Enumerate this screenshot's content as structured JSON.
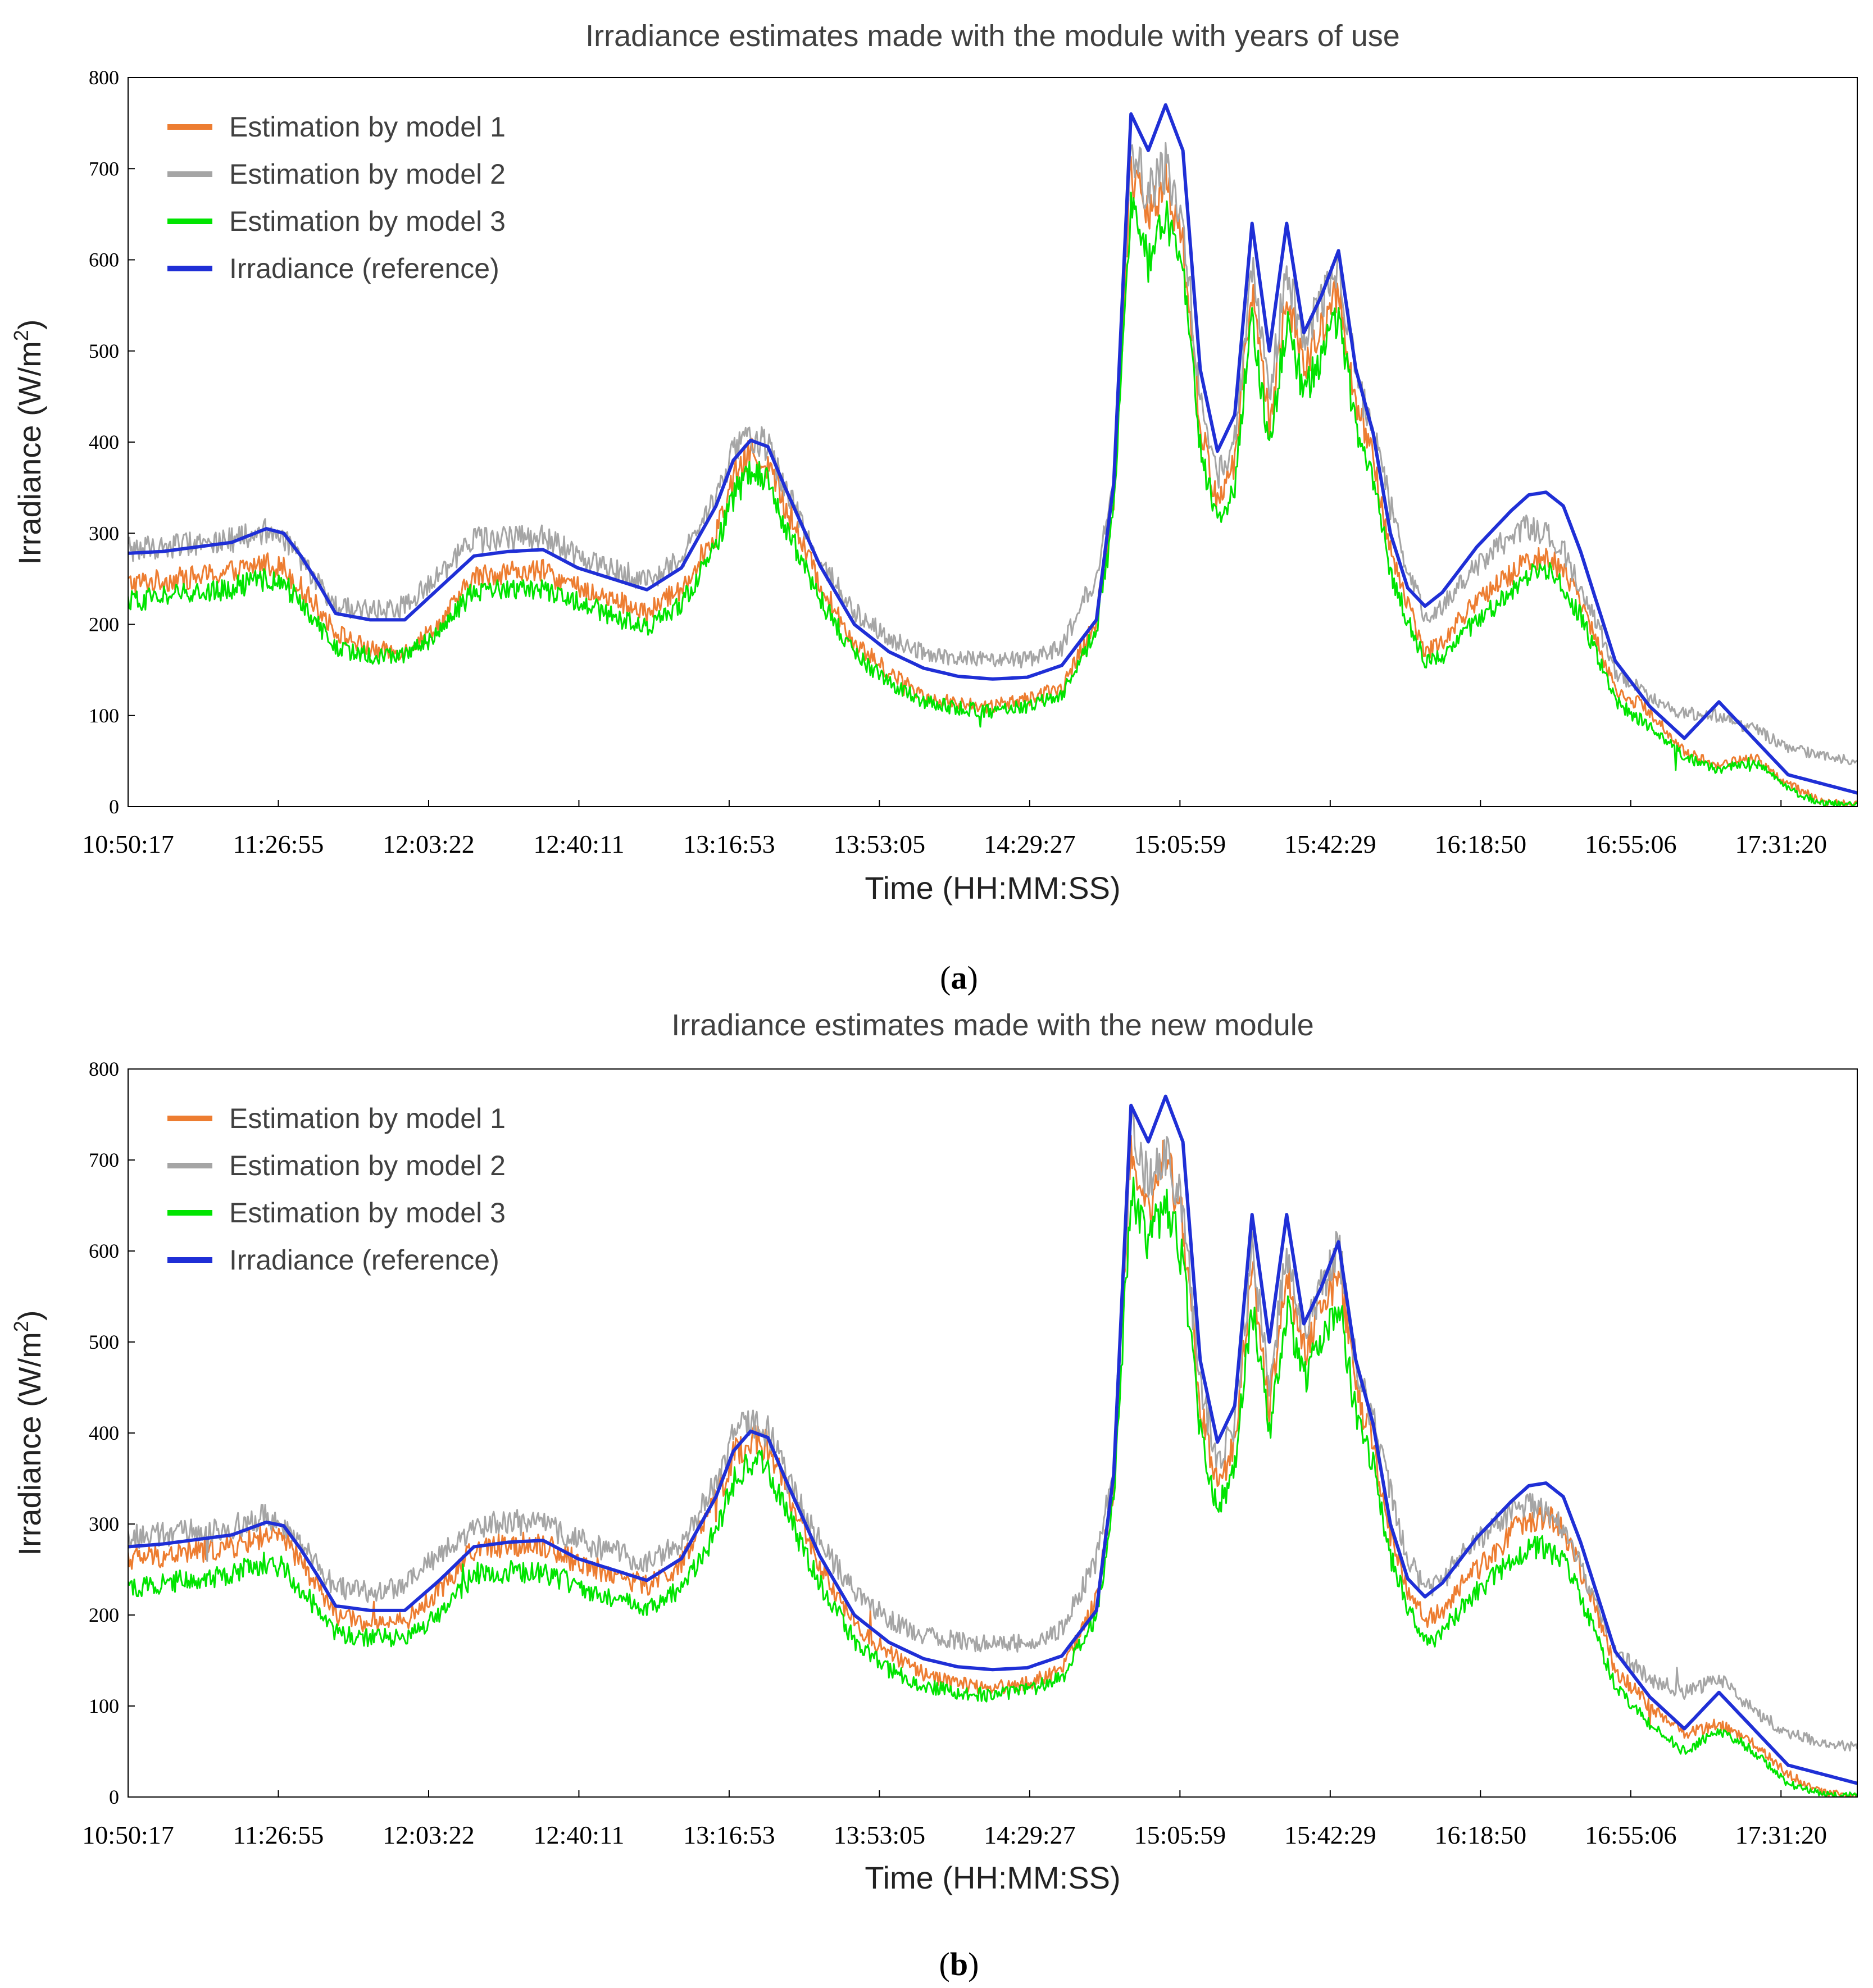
{
  "chart_data": [
    {
      "type": "line",
      "panel_label": "a",
      "title": "Irradiance estimates made with the module with years of use",
      "xlabel": "Time (HH:MM:SS)",
      "ylabel": "Irradiance (W/m",
      "ylabel_sup": "2",
      "ylabel_close": ")",
      "ylim": [
        0,
        800
      ],
      "yticks": [
        "0",
        "100",
        "200",
        "300",
        "400",
        "500",
        "600",
        "700",
        "800"
      ],
      "xticks": [
        "10:50:17",
        "11:26:55",
        "12:03:22",
        "12:40:11",
        "13:16:53",
        "13:53:05",
        "14:29:27",
        "15:05:59",
        "15:42:29",
        "16:18:50",
        "16:55:06",
        "17:31:20"
      ],
      "xlim": [
        0,
        100
      ],
      "x": [
        0,
        2,
        4,
        6,
        8,
        9,
        10,
        11,
        12,
        14,
        16,
        18,
        20,
        22,
        24,
        26,
        28,
        30,
        32,
        34,
        35,
        36,
        37,
        38,
        40,
        42,
        44,
        46,
        48,
        50,
        52,
        54,
        56,
        57,
        58,
        59,
        60,
        61,
        62,
        63,
        64,
        65,
        66,
        67,
        68,
        69,
        70,
        71,
        72,
        73,
        74,
        75,
        76,
        77,
        78,
        79,
        80,
        81,
        82,
        83,
        84,
        85,
        86,
        88,
        90,
        92,
        94,
        96,
        98,
        100
      ],
      "series": [
        {
          "name": "Estimation by model 1",
          "color": "#ED7D31",
          "values": [
            245,
            248,
            252,
            258,
            268,
            262,
            240,
            218,
            192,
            172,
            170,
            200,
            252,
            258,
            258,
            240,
            228,
            212,
            240,
            300,
            360,
            390,
            375,
            330,
            245,
            180,
            148,
            122,
            112,
            110,
            118,
            130,
            205,
            340,
            700,
            640,
            695,
            620,
            420,
            330,
            380,
            570,
            420,
            560,
            480,
            520,
            570,
            440,
            380,
            280,
            225,
            170,
            180,
            205,
            225,
            240,
            255,
            270,
            275,
            260,
            225,
            180,
            130,
            105,
            60,
            45,
            55,
            25,
            5,
            2
          ]
        },
        {
          "name": "Estimation by model 2",
          "color": "#A5A5A5",
          "values": [
            282,
            285,
            290,
            292,
            302,
            295,
            270,
            245,
            220,
            215,
            220,
            255,
            292,
            295,
            295,
            275,
            262,
            248,
            270,
            340,
            390,
            408,
            395,
            350,
            270,
            215,
            185,
            168,
            162,
            160,
            162,
            175,
            255,
            360,
            730,
            670,
            700,
            640,
            450,
            360,
            405,
            595,
            450,
            590,
            510,
            555,
            600,
            470,
            410,
            330,
            260,
            210,
            220,
            245,
            262,
            280,
            298,
            308,
            300,
            282,
            240,
            200,
            148,
            120,
            102,
            100,
            85,
            65,
            55,
            50
          ]
        },
        {
          "name": "Estimation by model 3",
          "color": "#00E400",
          "values": [
            225,
            230,
            235,
            240,
            250,
            245,
            222,
            200,
            175,
            165,
            165,
            190,
            238,
            240,
            240,
            225,
            210,
            195,
            222,
            285,
            340,
            370,
            355,
            310,
            228,
            168,
            135,
            115,
            108,
            105,
            110,
            122,
            195,
            320,
            660,
            600,
            650,
            580,
            395,
            310,
            355,
            540,
            395,
            530,
            455,
            495,
            540,
            415,
            360,
            260,
            205,
            158,
            165,
            185,
            205,
            220,
            238,
            252,
            258,
            242,
            208,
            165,
            115,
            88,
            55,
            40,
            50,
            20,
            3,
            1
          ]
        },
        {
          "name": "Irradiance (reference)",
          "color": "#1F2FD6",
          "values": [
            278,
            280,
            285,
            290,
            305,
            300,
            275,
            245,
            212,
            205,
            205,
            240,
            275,
            280,
            282,
            262,
            250,
            238,
            262,
            330,
            380,
            402,
            395,
            350,
            265,
            200,
            170,
            152,
            143,
            140,
            142,
            155,
            205,
            355,
            760,
            720,
            770,
            720,
            480,
            390,
            430,
            640,
            500,
            640,
            520,
            560,
            610,
            480,
            410,
            300,
            240,
            220,
            235,
            260,
            285,
            305,
            325,
            342,
            345,
            330,
            280,
            220,
            160,
            110,
            75,
            115,
            75,
            35,
            25,
            15
          ]
        }
      ]
    },
    {
      "type": "line",
      "panel_label": "b",
      "title": "Irradiance estimates made with the new module",
      "xlabel": "Time (HH:MM:SS)",
      "ylabel": "Irradiance (W/m",
      "ylabel_sup": "2",
      "ylabel_close": ")",
      "ylim": [
        0,
        800
      ],
      "yticks": [
        "0",
        "100",
        "200",
        "300",
        "400",
        "500",
        "600",
        "700",
        "800"
      ],
      "xticks": [
        "10:50:17",
        "11:26:55",
        "12:03:22",
        "12:40:11",
        "13:16:53",
        "13:53:05",
        "14:29:27",
        "15:05:59",
        "15:42:29",
        "16:18:50",
        "16:55:06",
        "17:31:20"
      ],
      "xlim": [
        0,
        100
      ],
      "x": [
        0,
        2,
        4,
        6,
        8,
        9,
        10,
        11,
        12,
        14,
        16,
        18,
        20,
        22,
        24,
        26,
        28,
        30,
        32,
        34,
        35,
        36,
        37,
        38,
        40,
        42,
        44,
        46,
        48,
        50,
        52,
        54,
        56,
        57,
        58,
        59,
        60,
        61,
        62,
        63,
        64,
        65,
        66,
        67,
        68,
        69,
        70,
        71,
        72,
        73,
        74,
        75,
        76,
        77,
        78,
        79,
        80,
        81,
        82,
        83,
        84,
        85,
        86,
        88,
        90,
        92,
        94,
        96,
        98,
        100
      ],
      "series": [
        {
          "name": "Estimation by model 1",
          "color": "#ED7D31",
          "values": [
            262,
            265,
            270,
            275,
            288,
            282,
            258,
            230,
            200,
            190,
            192,
            228,
            272,
            278,
            278,
            258,
            245,
            232,
            255,
            325,
            375,
            395,
            385,
            340,
            255,
            190,
            158,
            135,
            125,
            120,
            125,
            140,
            215,
            345,
            715,
            650,
            705,
            630,
            430,
            340,
            390,
            580,
            430,
            570,
            490,
            530,
            580,
            450,
            385,
            290,
            225,
            195,
            205,
            230,
            250,
            270,
            290,
            305,
            308,
            295,
            250,
            200,
            140,
            100,
            70,
            80,
            60,
            25,
            5,
            2
          ]
        },
        {
          "name": "Estimation by model 2",
          "color": "#A5A5A5",
          "values": [
            285,
            288,
            292,
            298,
            308,
            300,
            278,
            252,
            230,
            225,
            232,
            268,
            298,
            302,
            300,
            282,
            270,
            258,
            280,
            345,
            398,
            415,
            402,
            355,
            280,
            225,
            195,
            178,
            172,
            168,
            170,
            185,
            260,
            365,
            735,
            675,
            705,
            645,
            455,
            365,
            410,
            600,
            455,
            595,
            515,
            560,
            605,
            475,
            415,
            335,
            265,
            225,
            238,
            262,
            280,
            298,
            315,
            322,
            315,
            295,
            255,
            210,
            160,
            130,
            115,
            130,
            95,
            70,
            60,
            55
          ]
        },
        {
          "name": "Estimation by model 3",
          "color": "#00E400",
          "values": [
            230,
            235,
            240,
            245,
            258,
            252,
            228,
            205,
            180,
            175,
            175,
            200,
            245,
            248,
            248,
            232,
            218,
            205,
            228,
            292,
            345,
            372,
            360,
            315,
            235,
            172,
            140,
            122,
            115,
            112,
            118,
            130,
            200,
            325,
            668,
            608,
            658,
            588,
            400,
            315,
            360,
            545,
            400,
            535,
            460,
            500,
            545,
            420,
            365,
            265,
            210,
            168,
            180,
            205,
            225,
            242,
            260,
            272,
            275,
            258,
            220,
            175,
            120,
            80,
            50,
            75,
            50,
            15,
            3,
            1
          ]
        },
        {
          "name": "Irradiance (reference)",
          "color": "#1F2FD6",
          "values": [
            275,
            278,
            283,
            288,
            302,
            298,
            272,
            242,
            210,
            205,
            205,
            238,
            275,
            280,
            282,
            262,
            250,
            238,
            262,
            330,
            380,
            402,
            395,
            350,
            265,
            200,
            170,
            152,
            143,
            140,
            142,
            155,
            205,
            355,
            760,
            720,
            770,
            720,
            480,
            390,
            430,
            640,
            500,
            640,
            520,
            560,
            610,
            480,
            410,
            300,
            240,
            220,
            235,
            260,
            285,
            305,
            325,
            342,
            345,
            330,
            280,
            220,
            160,
            110,
            75,
            115,
            75,
            35,
            25,
            15
          ]
        }
      ]
    }
  ]
}
